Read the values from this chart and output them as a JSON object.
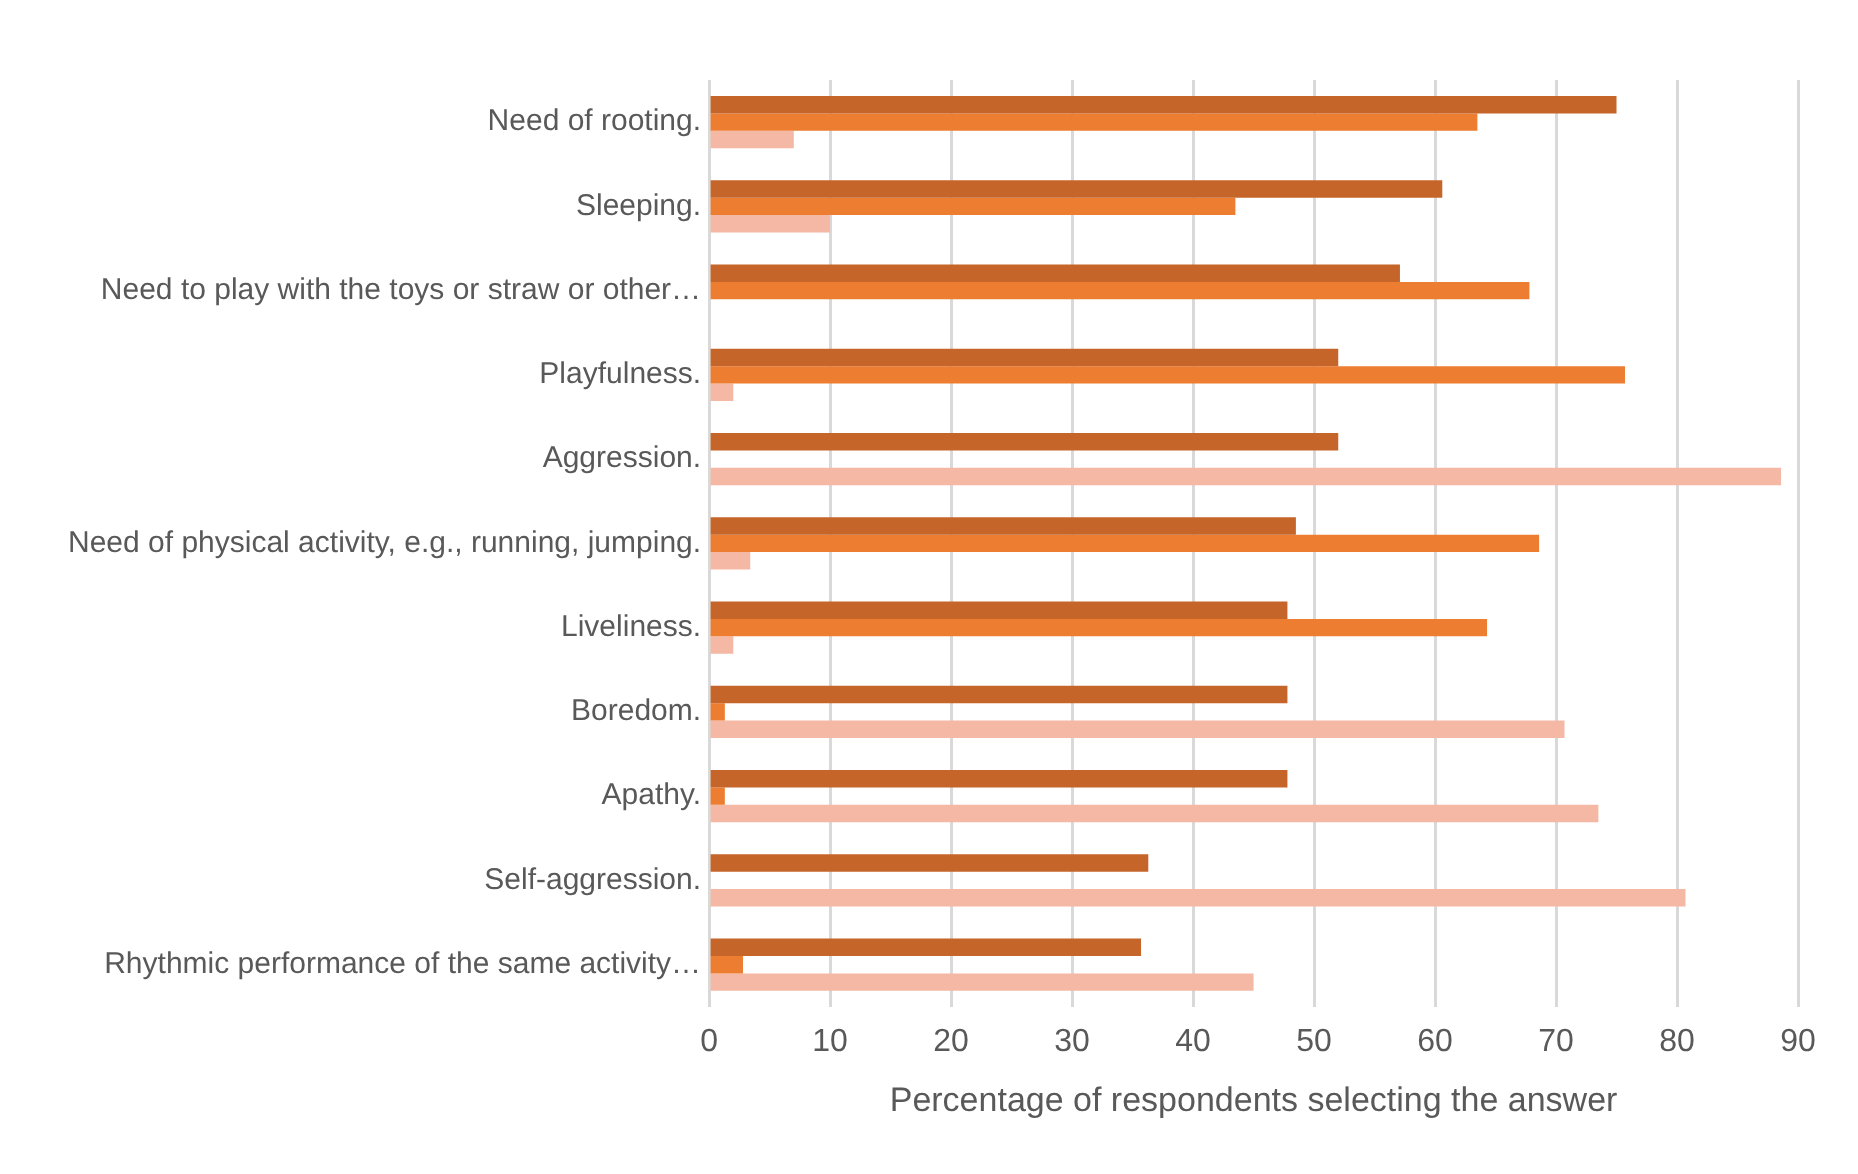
{
  "chart_data": {
    "type": "bar",
    "orientation": "horizontal",
    "xlabel": "Percentage of respondents selecting the answer",
    "categories": [
      "Need of rooting.",
      "Sleeping.",
      "Need to play with the toys or straw or other…",
      "Playfulness.",
      "Aggression.",
      "Need of physical activity, e.g., running, jumping.",
      "Liveliness.",
      "Boredom.",
      "Apathy.",
      "Self-aggression.",
      "Rhythmic performance of the same activity…"
    ],
    "series": [
      {
        "color": "#c5652a",
        "values": [
          75.0,
          60.6,
          57.1,
          52.0,
          52.0,
          48.5,
          47.8,
          47.8,
          47.8,
          36.3,
          35.7
        ]
      },
      {
        "color": "#ed7d31",
        "values": [
          63.5,
          43.5,
          67.8,
          75.7,
          0,
          68.6,
          64.3,
          1.3,
          1.3,
          0,
          2.8
        ]
      },
      {
        "color": "#f4b8a4",
        "values": [
          7.0,
          10.0,
          0,
          2.0,
          88.6,
          3.4,
          2.0,
          70.7,
          73.5,
          80.7,
          45.0
        ]
      }
    ],
    "xlim": [
      0,
      90
    ],
    "xticks": [
      0,
      10,
      20,
      30,
      40,
      50,
      60,
      70,
      80,
      90
    ],
    "grid": "x",
    "legend": false
  }
}
